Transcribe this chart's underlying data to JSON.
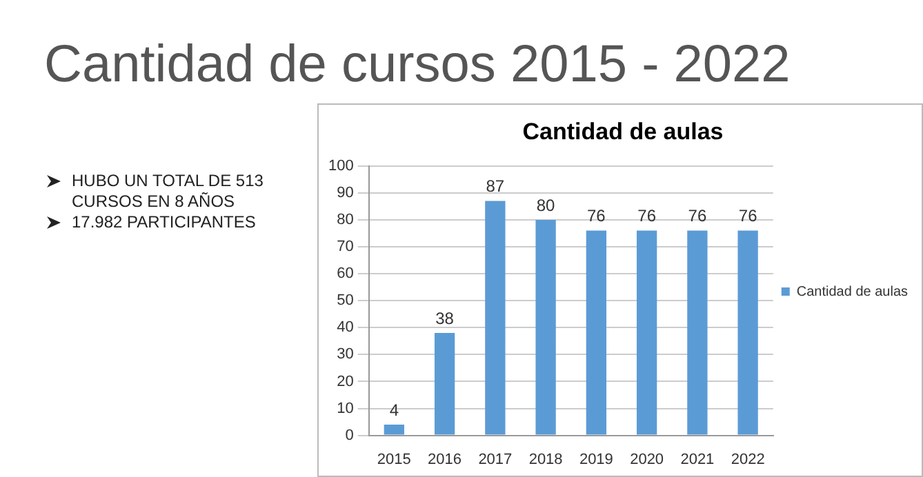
{
  "chart_data": {
    "type": "bar",
    "title": "Cantidad de cursos 2015 - 2022",
    "subtitle": "Cantidad de aulas",
    "annotations": [
      "HUBO UN TOTAL DE 513 CURSOS EN 8 AÑOS",
      "17.982 PARTICIPANTES"
    ],
    "categories": [
      "2015",
      "2016",
      "2017",
      "2018",
      "2019",
      "2020",
      "2021",
      "2022"
    ],
    "series": [
      {
        "name": "Cantidad de aulas",
        "color": "#5b9bd5",
        "values": [
          4,
          38,
          87,
          80,
          76,
          76,
          76,
          76
        ]
      }
    ],
    "ylim": [
      0,
      100
    ],
    "yticks": [
      0,
      10,
      20,
      30,
      40,
      50,
      60,
      70,
      80,
      90,
      100
    ],
    "grid": "y",
    "legend": "right",
    "data_labels": true
  }
}
